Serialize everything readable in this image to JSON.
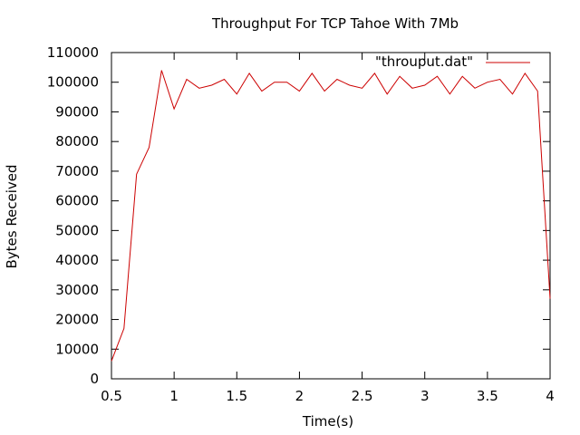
{
  "chart_data": {
    "type": "line",
    "title": "Throughput For TCP Tahoe With 7Mb",
    "xlabel": "Time(s)",
    "ylabel": "Bytes Received",
    "xlim": [
      0.5,
      4
    ],
    "ylim": [
      0,
      110000
    ],
    "x_ticks": [
      0.5,
      1,
      1.5,
      2,
      2.5,
      3,
      3.5,
      4
    ],
    "y_ticks": [
      0,
      10000,
      20000,
      30000,
      40000,
      50000,
      60000,
      70000,
      80000,
      90000,
      100000,
      110000
    ],
    "x_tick_labels": [
      "0.5",
      "1",
      "1.5",
      "2",
      "2.5",
      "3",
      "3.5",
      "4"
    ],
    "y_tick_labels": [
      "0",
      "10000",
      "20000",
      "30000",
      "40000",
      "50000",
      "60000",
      "70000",
      "80000",
      "90000",
      "100000",
      "110000"
    ],
    "legend_position": "top-right",
    "grid": false,
    "series": [
      {
        "name": "\"throuput.dat\"",
        "color": "#cc0000",
        "x": [
          0.5,
          0.6,
          0.7,
          0.8,
          0.9,
          1.0,
          1.1,
          1.2,
          1.3,
          1.4,
          1.5,
          1.6,
          1.7,
          1.8,
          1.9,
          2.0,
          2.1,
          2.2,
          2.3,
          2.4,
          2.5,
          2.6,
          2.7,
          2.8,
          2.9,
          3.0,
          3.1,
          3.2,
          3.3,
          3.4,
          3.5,
          3.6,
          3.7,
          3.8,
          3.9,
          4.0
        ],
        "y": [
          6000,
          17000,
          69000,
          78000,
          104000,
          91000,
          101000,
          98000,
          99000,
          101000,
          96000,
          103000,
          97000,
          100000,
          100000,
          97000,
          103000,
          97000,
          101000,
          99000,
          98000,
          103000,
          96000,
          102000,
          98000,
          99000,
          102000,
          96000,
          102000,
          98000,
          100000,
          101000,
          96000,
          103000,
          97000,
          27000
        ]
      }
    ]
  }
}
